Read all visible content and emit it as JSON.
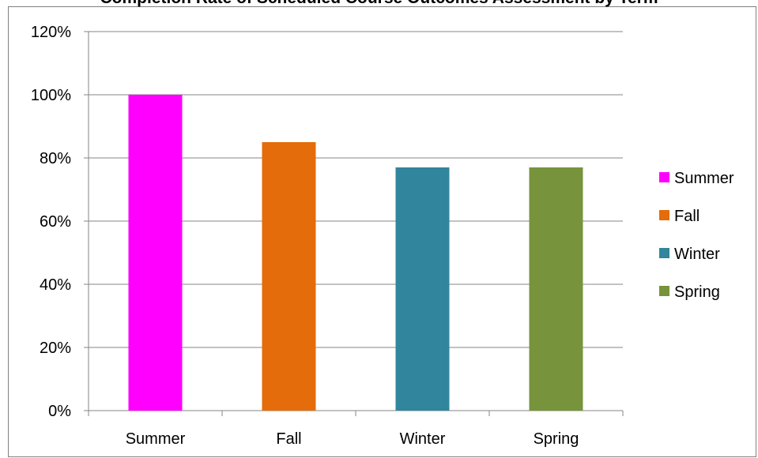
{
  "chart_data": {
    "type": "bar",
    "title": "Completion Rate of Scheduled Course Outcomes Assessment by Term",
    "categories": [
      "Summer",
      "Fall",
      "Winter",
      "Spring"
    ],
    "values": [
      1.0,
      0.85,
      0.77,
      0.77
    ],
    "colors": [
      "#ff00ff",
      "#e46c0a",
      "#31859c",
      "#77933c"
    ],
    "ylim": [
      0,
      1.2
    ],
    "yticks": [
      0,
      0.2,
      0.4,
      0.6,
      0.8,
      1.0,
      1.2
    ],
    "ytick_labels": [
      "0%",
      "20%",
      "40%",
      "60%",
      "80%",
      "100%",
      "120%"
    ],
    "xlabel": "",
    "ylabel": "",
    "grid": true,
    "legend": {
      "position": "right",
      "entries": [
        "Summer",
        "Fall",
        "Winter",
        "Spring"
      ]
    }
  }
}
